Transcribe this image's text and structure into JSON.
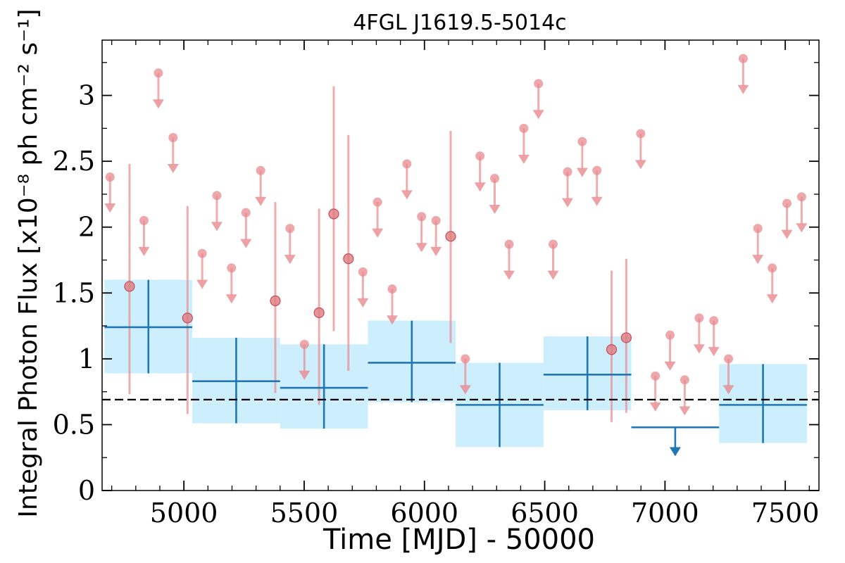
{
  "chart_data": {
    "type": "scatter",
    "title": "4FGL J1619.5-5014c",
    "xlabel": "Time [MJD] - 50000",
    "ylabel": "Integral Photon Flux [x10⁻⁸ ph cm⁻² s⁻¹]",
    "xlim": [
      4660,
      7640
    ],
    "ylim": [
      0,
      3.42
    ],
    "xticks": [
      5000,
      5500,
      6000,
      6500,
      7000,
      7500
    ],
    "xtick_labels": [
      "5000",
      "5500",
      "6000",
      "6500",
      "7000",
      "7500"
    ],
    "yticks": [
      0,
      0.5,
      1,
      1.5,
      2,
      2.5,
      3
    ],
    "ytick_labels": [
      "0",
      "0.5",
      "1",
      "1.5",
      "2",
      "2.5",
      "3"
    ],
    "reference_line": {
      "y": 0.69,
      "style": "dashed",
      "color": "#000000"
    },
    "colors": {
      "short_bins": "#e88a8f",
      "long_bins": "#1f77b4",
      "long_bins_band": "#cdeefc",
      "reference": "#000000"
    },
    "series": [
      {
        "kind": "short-bin-upper-limits",
        "points": [
          {
            "x": 4693,
            "y": 2.38
          },
          {
            "x": 4834,
            "y": 2.05
          },
          {
            "x": 4894,
            "y": 3.17
          },
          {
            "x": 4955,
            "y": 2.68
          },
          {
            "x": 5076,
            "y": 1.8
          },
          {
            "x": 5137,
            "y": 2.24
          },
          {
            "x": 5198,
            "y": 1.69
          },
          {
            "x": 5258,
            "y": 2.11
          },
          {
            "x": 5319,
            "y": 2.43
          },
          {
            "x": 5441,
            "y": 1.99
          },
          {
            "x": 5501,
            "y": 1.11
          },
          {
            "x": 5744,
            "y": 1.66
          },
          {
            "x": 5805,
            "y": 2.19
          },
          {
            "x": 5866,
            "y": 1.53
          },
          {
            "x": 5927,
            "y": 2.48
          },
          {
            "x": 5988,
            "y": 2.08
          },
          {
            "x": 6048,
            "y": 2.05
          },
          {
            "x": 6170,
            "y": 1.0
          },
          {
            "x": 6231,
            "y": 2.54
          },
          {
            "x": 6292,
            "y": 2.37
          },
          {
            "x": 6352,
            "y": 1.87
          },
          {
            "x": 6413,
            "y": 2.75
          },
          {
            "x": 6474,
            "y": 3.09
          },
          {
            "x": 6535,
            "y": 1.87
          },
          {
            "x": 6595,
            "y": 2.42
          },
          {
            "x": 6656,
            "y": 2.65
          },
          {
            "x": 6717,
            "y": 2.43
          },
          {
            "x": 6899,
            "y": 2.71
          },
          {
            "x": 6960,
            "y": 0.87
          },
          {
            "x": 7021,
            "y": 1.18
          },
          {
            "x": 7082,
            "y": 0.84
          },
          {
            "x": 7142,
            "y": 1.31
          },
          {
            "x": 7203,
            "y": 1.29
          },
          {
            "x": 7264,
            "y": 1.0
          },
          {
            "x": 7325,
            "y": 3.28
          },
          {
            "x": 7386,
            "y": 1.99
          },
          {
            "x": 7446,
            "y": 1.69
          },
          {
            "x": 7507,
            "y": 2.18
          },
          {
            "x": 7568,
            "y": 2.23
          }
        ]
      },
      {
        "kind": "short-bin-detections",
        "points": [
          {
            "x": 4774,
            "y": 1.55,
            "ylo": 0.73,
            "yhi": 2.48
          },
          {
            "x": 5015,
            "y": 1.31,
            "ylo": 0.58,
            "yhi": 2.16
          },
          {
            "x": 5380,
            "y": 1.44,
            "ylo": 0.74,
            "yhi": 2.19
          },
          {
            "x": 5562,
            "y": 1.35,
            "ylo": 0.65,
            "yhi": 2.14
          },
          {
            "x": 5623,
            "y": 2.1,
            "ylo": 1.21,
            "yhi": 3.07
          },
          {
            "x": 5684,
            "y": 1.76,
            "ylo": 0.91,
            "yhi": 2.7
          },
          {
            "x": 6109,
            "y": 1.93,
            "ylo": 1.12,
            "yhi": 2.73
          },
          {
            "x": 6778,
            "y": 1.07,
            "ylo": 0.52,
            "yhi": 1.67
          },
          {
            "x": 6839,
            "y": 1.16,
            "ylo": 0.59,
            "yhi": 1.76
          }
        ]
      },
      {
        "kind": "long-bin-detections",
        "points": [
          {
            "x0": 4670,
            "x1": 5035,
            "y": 1.24,
            "ylo": 0.89,
            "yhi": 1.6
          },
          {
            "x0": 5035,
            "x1": 5400,
            "y": 0.83,
            "ylo": 0.51,
            "yhi": 1.16
          },
          {
            "x0": 5400,
            "x1": 5765,
            "y": 0.78,
            "ylo": 0.47,
            "yhi": 1.11
          },
          {
            "x0": 5765,
            "x1": 6130,
            "y": 0.97,
            "ylo": 0.67,
            "yhi": 1.29
          },
          {
            "x0": 6130,
            "x1": 6495,
            "y": 0.65,
            "ylo": 0.33,
            "yhi": 0.97
          },
          {
            "x0": 6495,
            "x1": 6860,
            "y": 0.88,
            "ylo": 0.61,
            "yhi": 1.17
          },
          {
            "x0": 7225,
            "x1": 7590,
            "y": 0.65,
            "ylo": 0.36,
            "yhi": 0.96
          }
        ]
      },
      {
        "kind": "long-bin-upper-limit",
        "points": [
          {
            "x0": 6860,
            "x1": 7225,
            "y": 0.48
          }
        ]
      }
    ]
  }
}
